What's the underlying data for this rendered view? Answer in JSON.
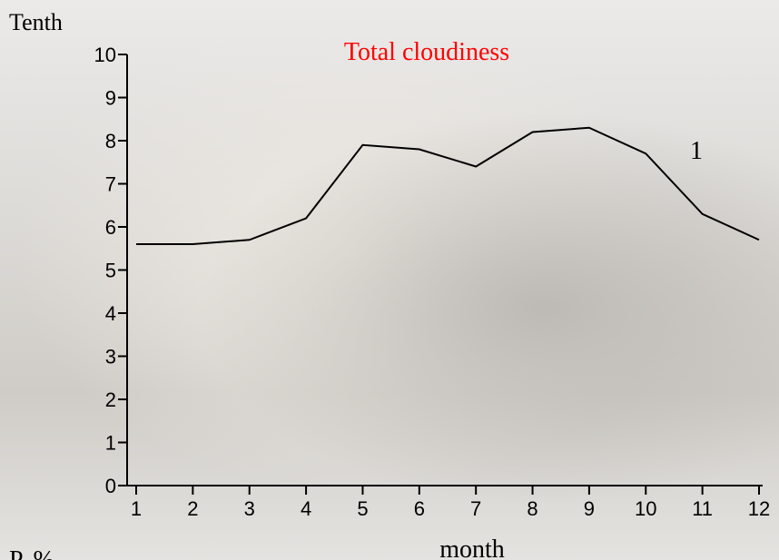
{
  "chart_data": {
    "type": "line",
    "title": "Total cloudiness",
    "y_label": "Tenth",
    "x_label": "month",
    "footer_label": "P, %",
    "x": [
      1,
      2,
      3,
      4,
      5,
      6,
      7,
      8,
      9,
      10,
      11,
      12
    ],
    "series": [
      {
        "name": "1",
        "color": "#000000",
        "values": [
          5.6,
          5.6,
          5.7,
          6.2,
          7.9,
          7.8,
          7.4,
          8.2,
          8.3,
          7.7,
          6.3,
          5.7
        ]
      }
    ],
    "xlim": [
      1,
      12
    ],
    "xticks": [
      1,
      2,
      3,
      4,
      5,
      6,
      7,
      8,
      9,
      10,
      11,
      12
    ],
    "ylim": [
      0,
      10
    ],
    "yticks": [
      0,
      1,
      2,
      3,
      4,
      5,
      6,
      7,
      8,
      9,
      10
    ],
    "grid": false
  }
}
